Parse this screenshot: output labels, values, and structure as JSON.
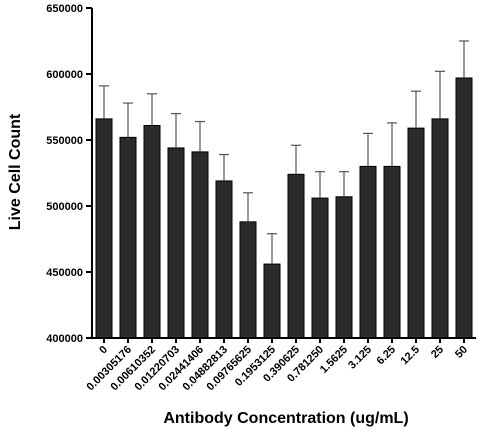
{
  "chart_data": {
    "type": "bar",
    "title": "",
    "xlabel": "Antibody Concentration (ug/mL)",
    "ylabel": "Live Cell Count",
    "ylim": [
      400000,
      650000
    ],
    "yticks": [
      "400000",
      "450000",
      "500000",
      "550000",
      "600000",
      "650000"
    ],
    "ytick_values": [
      400000,
      450000,
      500000,
      550000,
      600000,
      650000
    ],
    "categories": [
      "0",
      "0.00305176",
      "0.00610352",
      "0.01220703",
      "0.02441406",
      "0.04882813",
      "0.09765625",
      "0.1953125",
      "0.390625",
      "0.781250",
      "1.5625",
      "3.125",
      "6.25",
      "12.5",
      "25",
      "50"
    ],
    "values": [
      566000,
      552000,
      561000,
      544000,
      541000,
      519000,
      488000,
      456000,
      524000,
      506000,
      507000,
      530000,
      530000,
      559000,
      566000,
      597000
    ],
    "error_upper": [
      25000,
      26000,
      24000,
      26000,
      23000,
      20000,
      22000,
      23000,
      22000,
      20000,
      19000,
      25000,
      33000,
      28000,
      36000,
      28000
    ],
    "grid": false,
    "legend": "none",
    "bar_color": "#2b2b2b"
  }
}
